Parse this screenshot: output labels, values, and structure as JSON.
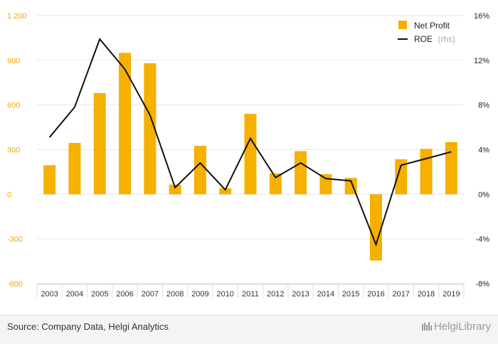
{
  "chart_data": {
    "type": "bar",
    "categories": [
      "2003",
      "2004",
      "2005",
      "2006",
      "2007",
      "2008",
      "2009",
      "2010",
      "2011",
      "2012",
      "2013",
      "2014",
      "2015",
      "2016",
      "2017",
      "2018",
      "2019"
    ],
    "series": [
      {
        "name": "Net Profit",
        "type": "bar",
        "axis": "left",
        "values": [
          195,
          345,
          680,
          950,
          880,
          65,
          325,
          40,
          540,
          140,
          290,
          135,
          110,
          -445,
          235,
          305,
          350
        ]
      },
      {
        "name": "ROE",
        "name_suffix": "(rhs)",
        "type": "line",
        "axis": "right",
        "unit": "%",
        "values": [
          5.1,
          7.8,
          13.9,
          11.2,
          7.1,
          0.6,
          2.8,
          0.4,
          5.0,
          1.5,
          2.8,
          1.4,
          1.2,
          -4.5,
          2.6,
          3.2,
          3.8
        ]
      }
    ],
    "y_left": {
      "ylim": [
        -600,
        1200
      ],
      "ticks": [
        -600,
        -300,
        0,
        300,
        600,
        900,
        1200
      ],
      "tick_labels": [
        "-600",
        "-300",
        "0",
        "300",
        "600",
        "900",
        "1 200"
      ]
    },
    "y_right": {
      "ylim": [
        -8,
        16
      ],
      "ticks": [
        -8,
        -4,
        0,
        4,
        8,
        12,
        16
      ],
      "tick_labels": [
        "-8%",
        "-4%",
        "0%",
        "4%",
        "8%",
        "12%",
        "16%"
      ]
    },
    "grid": true,
    "legend_position": "top-right",
    "colors": {
      "bar": "#f5b000",
      "line": "#111111",
      "left_axis_text": "#f0a800"
    }
  },
  "footer": {
    "source": "Source: Company Data, Helgi Analytics",
    "brand": "HelgiLibrary"
  }
}
